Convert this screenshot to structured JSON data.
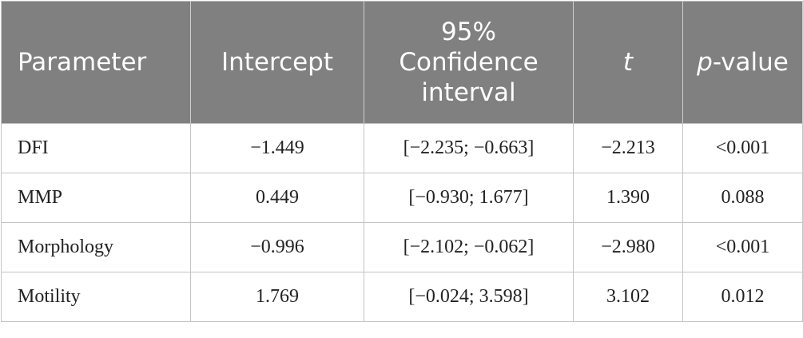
{
  "table": {
    "headers": [
      "Parameter",
      "Intercept",
      "95% Confidence interval",
      "t",
      "p-value"
    ],
    "rows": [
      [
        "DFI",
        "−1.449",
        "[−2.235; −0.663]",
        "−2.213",
        "<0.001"
      ],
      [
        "MMP",
        "0.449",
        "[−0.930; 1.677]",
        "1.390",
        "0.088"
      ],
      [
        "Morphology",
        "−0.996",
        "[−2.102; −0.062]",
        "−2.980",
        "<0.001"
      ],
      [
        "Motility",
        "1.769",
        "[−0.024; 3.598]",
        "3.102",
        "0.012"
      ]
    ]
  },
  "colors": {
    "header_background": "#808080",
    "header_text": "#ffffff",
    "body_text": "#222222",
    "border": "#c4c4c4"
  }
}
